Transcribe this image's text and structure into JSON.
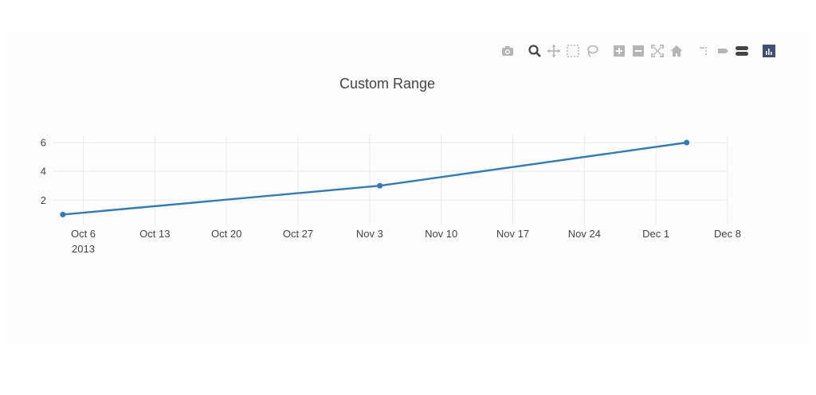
{
  "modebar": {
    "buttons": [
      {
        "name": "camera-icon",
        "label": "Download plot as a png"
      },
      {
        "name": "zoom-icon",
        "label": "Zoom"
      },
      {
        "name": "pan-icon",
        "label": "Pan"
      },
      {
        "name": "box-select-icon",
        "label": "Box Select"
      },
      {
        "name": "lasso-select-icon",
        "label": "Lasso Select"
      },
      {
        "name": "zoom-in-icon",
        "label": "Zoom in"
      },
      {
        "name": "zoom-out-icon",
        "label": "Zoom out"
      },
      {
        "name": "autoscale-icon",
        "label": "Autoscale"
      },
      {
        "name": "home-icon",
        "label": "Reset axes"
      },
      {
        "name": "spike-lines-icon",
        "label": "Toggle Spike Lines"
      },
      {
        "name": "hover-closest-icon",
        "label": "Show closest data on hover"
      },
      {
        "name": "hover-compare-icon",
        "label": "Compare data on hover"
      },
      {
        "name": "plotly-logo-icon",
        "label": "Produced with Plotly"
      }
    ]
  },
  "chart_data": {
    "type": "line",
    "title": "Custom Range",
    "x": [
      "2013-10-04",
      "2013-11-04",
      "2013-12-04"
    ],
    "y": [
      1,
      3,
      6
    ],
    "xlim": [
      "2013-10-03",
      "2013-12-08"
    ],
    "ylim": [
      0.3,
      6.5
    ],
    "yticks": [
      2,
      4,
      6
    ],
    "xticks": [
      "2013-10-06",
      "2013-10-13",
      "2013-10-20",
      "2013-10-27",
      "2013-11-03",
      "2013-11-10",
      "2013-11-17",
      "2013-11-24",
      "2013-12-01",
      "2013-12-08"
    ],
    "xtick_labels": [
      "Oct 6",
      "Oct 13",
      "Oct 20",
      "Oct 27",
      "Nov 3",
      "Nov 10",
      "Nov 17",
      "Nov 24",
      "Dec 1",
      "Dec 8"
    ],
    "year_label": "2013",
    "line_color": "#2f7cb9",
    "grid": true
  }
}
